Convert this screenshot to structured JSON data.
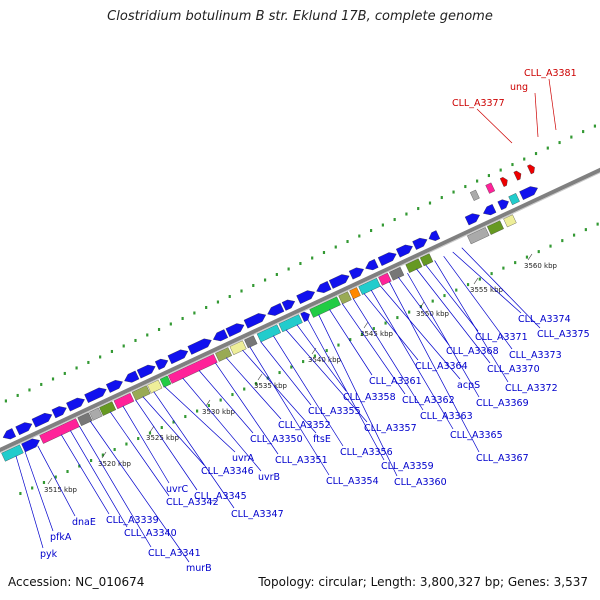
{
  "title": "Clostridium botulinum B str. Eklund 17B, complete genome",
  "accession": "Accession: NC_010674",
  "summary": "Topology: circular; Length: 3,800,327 bp; Genes: 3,537",
  "colors": {
    "backbone": "#808080",
    "gc_tick": "#339933",
    "gene_label": "#0000cc",
    "highlight_label": "#cc0000",
    "cds_arrow": "#1111ee",
    "highlight_arrow": "#ee0000"
  },
  "kbp_labels": [
    "3515 kbp",
    "3520 kbp",
    "3525 kbp",
    "3530 kbp",
    "3535 kbp",
    "3540 kbp",
    "3545 kbp",
    "3550 kbp",
    "3555 kbp",
    "3560 kbp"
  ],
  "gene_labels": [
    "pyk",
    "pfkA",
    "dnaE",
    "CLL_A3339",
    "CLL_A3340",
    "CLL_A3341",
    "murB",
    "CLL_A3342",
    "uvrC",
    "CLL_A3345",
    "CLL_A3346",
    "CLL_A3347",
    "uvrA",
    "uvrB",
    "CLL_A3350",
    "CLL_A3351",
    "CLL_A3352",
    "ftsE",
    "CLL_A3354",
    "CLL_A3355",
    "CLL_A3356",
    "CLL_A3357",
    "CLL_A3358",
    "CLL_A3359",
    "CLL_A3360",
    "CLL_A3361",
    "CLL_A3362",
    "CLL_A3363",
    "CLL_A3364",
    "CLL_A3365",
    "acpS",
    "CLL_A3367",
    "CLL_A3368",
    "CLL_A3369",
    "CLL_A3370",
    "CLL_A3371",
    "CLL_A3372",
    "CLL_A3373",
    "CLL_A3374",
    "CLL_A3375"
  ],
  "highlight_labels": [
    "CLL_A3377",
    "ung",
    "CLL_A3381"
  ]
}
